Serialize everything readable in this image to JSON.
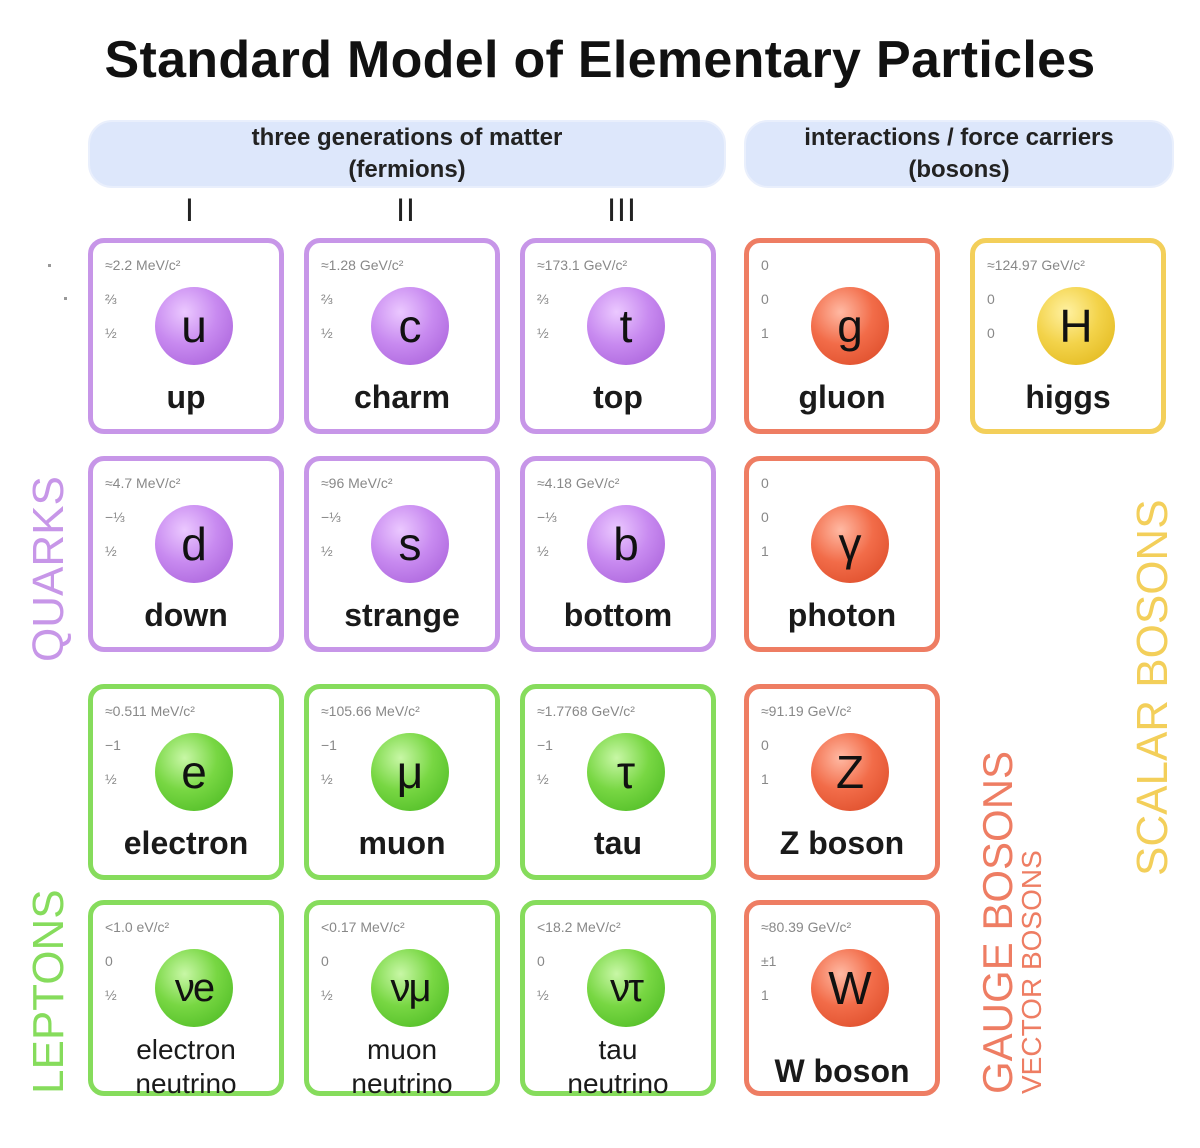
{
  "title": "Standard Model of Elementary Particles",
  "headers": {
    "matter_line1": "three generations of matter",
    "matter_line2": "(fermions)",
    "forces_line1": "interactions / force carriers",
    "forces_line2": "(bosons)"
  },
  "generations": [
    "I",
    "II",
    "III"
  ],
  "particles": {
    "up": {
      "symbol": "u",
      "name": "up",
      "mass": "≈2.2 MeV/c²",
      "charge": "⅔",
      "spin": "½"
    },
    "charm": {
      "symbol": "c",
      "name": "charm",
      "mass": "≈1.28 GeV/c²",
      "charge": "⅔",
      "spin": "½"
    },
    "top": {
      "symbol": "t",
      "name": "top",
      "mass": "≈173.1 GeV/c²",
      "charge": "⅔",
      "spin": "½"
    },
    "gluon": {
      "symbol": "g",
      "name": "gluon",
      "mass": "0",
      "charge": "0",
      "spin": "1"
    },
    "higgs": {
      "symbol": "H",
      "name": "higgs",
      "mass": "≈124.97 GeV/c²",
      "charge": "0",
      "spin": "0"
    },
    "down": {
      "symbol": "d",
      "name": "down",
      "mass": "≈4.7 MeV/c²",
      "charge": "−⅓",
      "spin": "½"
    },
    "strange": {
      "symbol": "s",
      "name": "strange",
      "mass": "≈96 MeV/c²",
      "charge": "−⅓",
      "spin": "½"
    },
    "bottom": {
      "symbol": "b",
      "name": "bottom",
      "mass": "≈4.18 GeV/c²",
      "charge": "−⅓",
      "spin": "½"
    },
    "photon": {
      "symbol": "γ",
      "name": "photon",
      "mass": "0",
      "charge": "0",
      "spin": "1"
    },
    "electron": {
      "symbol": "e",
      "name": "electron",
      "mass": "≈0.511 MeV/c²",
      "charge": "−1",
      "spin": "½"
    },
    "muon": {
      "symbol": "μ",
      "name": "muon",
      "mass": "≈105.66 MeV/c²",
      "charge": "−1",
      "spin": "½"
    },
    "tau": {
      "symbol": "τ",
      "name": "tau",
      "mass": "≈1.7768 GeV/c²",
      "charge": "−1",
      "spin": "½"
    },
    "zboson": {
      "symbol": "Z",
      "name": "Z boson",
      "mass": "≈91.19 GeV/c²",
      "charge": "0",
      "spin": "1"
    },
    "nue": {
      "symbol": "νe",
      "name1": "electron",
      "name2": "neutrino",
      "mass": "<1.0 eV/c²",
      "charge": "0",
      "spin": "½"
    },
    "numu": {
      "symbol": "νμ",
      "name1": "muon",
      "name2": "neutrino",
      "mass": "<0.17 MeV/c²",
      "charge": "0",
      "spin": "½"
    },
    "nutau": {
      "symbol": "ντ",
      "name1": "tau",
      "name2": "neutrino",
      "mass": "<18.2 MeV/c²",
      "charge": "0",
      "spin": "½"
    },
    "wboson": {
      "symbol": "W",
      "name": "W boson",
      "mass": "≈80.39 GeV/c²",
      "charge": "±1",
      "spin": "1"
    }
  },
  "group_labels": {
    "quarks": "QUARKS",
    "leptons": "LEPTONS",
    "gauge_bosons": "GAUGE BOSONS",
    "vector_bosons": "VECTOR BOSONS",
    "scalar_bosons": "SCALAR BOSONS"
  },
  "colors": {
    "quark": "#c796e8",
    "lepton": "#86dc5c",
    "gauge": "#ee7d63",
    "scalar": "#f3cf5a",
    "header": "#dde7fb"
  }
}
